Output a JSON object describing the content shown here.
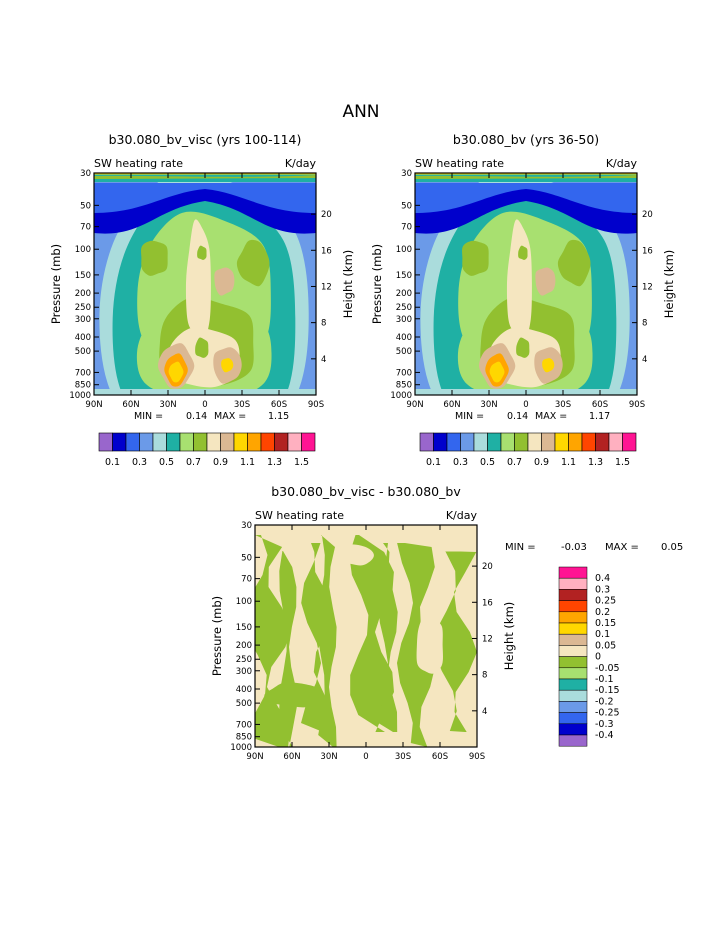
{
  "figure": {
    "title": "ANN"
  },
  "legend_colors": [
    "#9966cc",
    "#0000cc",
    "#3366ee",
    "#6b9ae8",
    "#aadcdc",
    "#1fb0a4",
    "#a8e070",
    "#92c030",
    "#f5e6c0",
    "#dbb893",
    "#ffd700",
    "#ffa500",
    "#ff4500",
    "#b22222",
    "#ffb0c0",
    "#ff1493"
  ],
  "chart_data": [
    {
      "type": "heatmap",
      "title": "b30.080_bv_visc (yrs 100-114)",
      "subtitle_left": "SW heating rate",
      "subtitle_right": "K/day",
      "ylabel": "Pressure (mb)",
      "ylabel_right": "Height (km)",
      "x_ticks": [
        "90N",
        "60N",
        "30N",
        "0",
        "30S",
        "60S",
        "90S"
      ],
      "y_ticks": [
        "1000",
        "850",
        "700",
        "500",
        "400",
        "300",
        "250",
        "200",
        "150",
        "100",
        "70",
        "50",
        "30"
      ],
      "y_ticks_right": [
        "4",
        "8",
        "12",
        "16",
        "20"
      ],
      "ylim": [
        1000,
        30
      ],
      "min_label": "MIN =",
      "min_value": "0.14",
      "max_label": "MAX =",
      "max_value": "1.15",
      "min": 0.14,
      "max": 1.15,
      "colorbar_labels": [
        "0.1",
        "0.3",
        "0.5",
        "0.7",
        "0.9",
        "1.1",
        "1.3",
        "1.5"
      ]
    },
    {
      "type": "heatmap",
      "title": "b30.080_bv (yrs 36-50)",
      "subtitle_left": "SW heating rate",
      "subtitle_right": "K/day",
      "ylabel": "Pressure (mb)",
      "ylabel_right": "Height (km)",
      "x_ticks": [
        "90N",
        "60N",
        "30N",
        "0",
        "30S",
        "60S",
        "90S"
      ],
      "y_ticks": [
        "1000",
        "850",
        "700",
        "500",
        "400",
        "300",
        "250",
        "200",
        "150",
        "100",
        "70",
        "50",
        "30"
      ],
      "y_ticks_right": [
        "4",
        "8",
        "12",
        "16",
        "20"
      ],
      "ylim": [
        1000,
        30
      ],
      "min_label": "MIN =",
      "min_value": "0.14",
      "max_label": "MAX =",
      "max_value": "1.17",
      "min": 0.14,
      "max": 1.17,
      "colorbar_labels": [
        "0.1",
        "0.3",
        "0.5",
        "0.7",
        "0.9",
        "1.1",
        "1.3",
        "1.5"
      ]
    },
    {
      "type": "heatmap",
      "title": "b30.080_bv_visc - b30.080_bv",
      "subtitle_left": "SW heating rate",
      "subtitle_right": "K/day",
      "ylabel": "Pressure (mb)",
      "ylabel_right": "Height (km)",
      "x_ticks": [
        "90N",
        "60N",
        "30N",
        "0",
        "30S",
        "60S",
        "90S"
      ],
      "y_ticks": [
        "1000",
        "850",
        "700",
        "500",
        "400",
        "300",
        "250",
        "200",
        "150",
        "100",
        "70",
        "50",
        "30"
      ],
      "y_ticks_right": [
        "4",
        "8",
        "12",
        "16",
        "20"
      ],
      "ylim": [
        1000,
        30
      ],
      "min_label": "MIN =",
      "min_value": "-0.03",
      "max_label": "MAX =",
      "max_value": "0.05",
      "min": -0.03,
      "max": 0.05,
      "colorbar_labels": [
        "0.4",
        "0.3",
        "0.25",
        "0.2",
        "0.15",
        "0.1",
        "0.05",
        "0",
        "-0.05",
        "-0.1",
        "-0.15",
        "-0.2",
        "-0.25",
        "-0.3",
        "-0.4"
      ]
    }
  ]
}
